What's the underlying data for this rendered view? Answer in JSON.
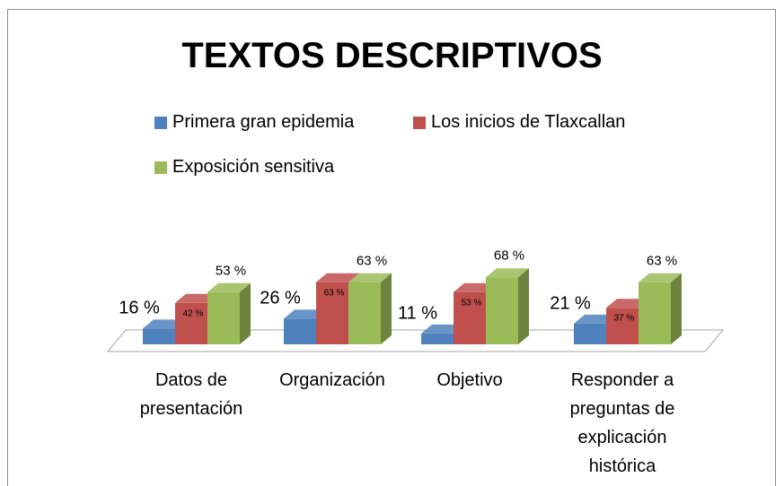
{
  "chart_data": {
    "type": "bar3d",
    "title": "TEXTOS DESCRIPTIVOS",
    "categories": [
      "Datos de presentación",
      "Organización",
      "Objetivo",
      "Responder a preguntas de explicación histórica"
    ],
    "series": [
      {
        "name": "Primera gran epidemia",
        "color": "#4f81bd",
        "values": [
          16,
          26,
          11,
          21
        ],
        "value_labels": [
          "16 %",
          "26 %",
          "11 %",
          "21 %"
        ]
      },
      {
        "name": "Los inicios de Tlaxcallan",
        "color": "#c0504d",
        "values": [
          42,
          63,
          53,
          37
        ],
        "value_labels": [
          "42 %",
          "63 %",
          "53 %",
          "37 %"
        ]
      },
      {
        "name": "Exposición sensitiva",
        "color": "#9bbb59",
        "values": [
          53,
          63,
          68,
          63
        ],
        "value_labels": [
          "53 %",
          "63 %",
          "68 %",
          "63 %"
        ]
      }
    ]
  }
}
